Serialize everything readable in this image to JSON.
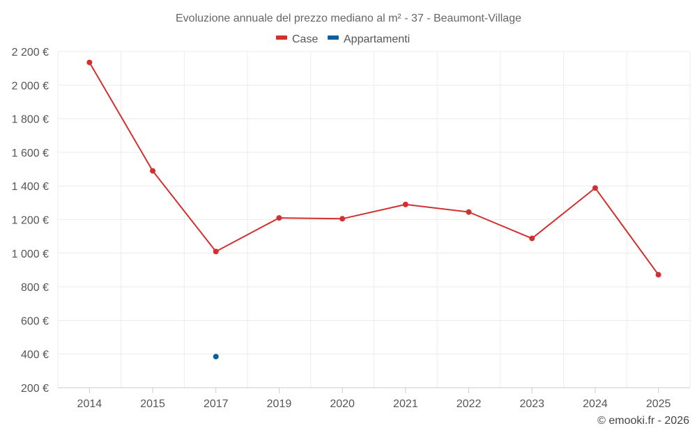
{
  "chart_data": {
    "type": "line",
    "title": "Evoluzione annuale del prezzo mediano al m² - 37 - Beaumont-Village",
    "categories": [
      "2014",
      "2015",
      "2017",
      "2019",
      "2020",
      "2021",
      "2022",
      "2023",
      "2024",
      "2025"
    ],
    "y_ticks": [
      200,
      400,
      600,
      800,
      1000,
      1200,
      1400,
      1600,
      1800,
      2000,
      2200
    ],
    "y_tick_labels": [
      "200 €",
      "400 €",
      "600 €",
      "800 €",
      "1 000 €",
      "1 200 €",
      "1 400 €",
      "1 600 €",
      "1 800 €",
      "2 000 €",
      "2 200 €"
    ],
    "ylim": [
      200,
      2200
    ],
    "grid": true,
    "legend_position": "top-center",
    "series": [
      {
        "name": "Case",
        "color": "#d32f2f",
        "values": [
          2135,
          1490,
          1010,
          1210,
          1205,
          1290,
          1245,
          1088,
          1388,
          872
        ]
      },
      {
        "name": "Appartamenti",
        "color": "#0d5f9b",
        "values": [
          null,
          null,
          385,
          null,
          null,
          null,
          null,
          null,
          null,
          null
        ]
      }
    ],
    "credit": "© emooki.fr - 2026"
  }
}
